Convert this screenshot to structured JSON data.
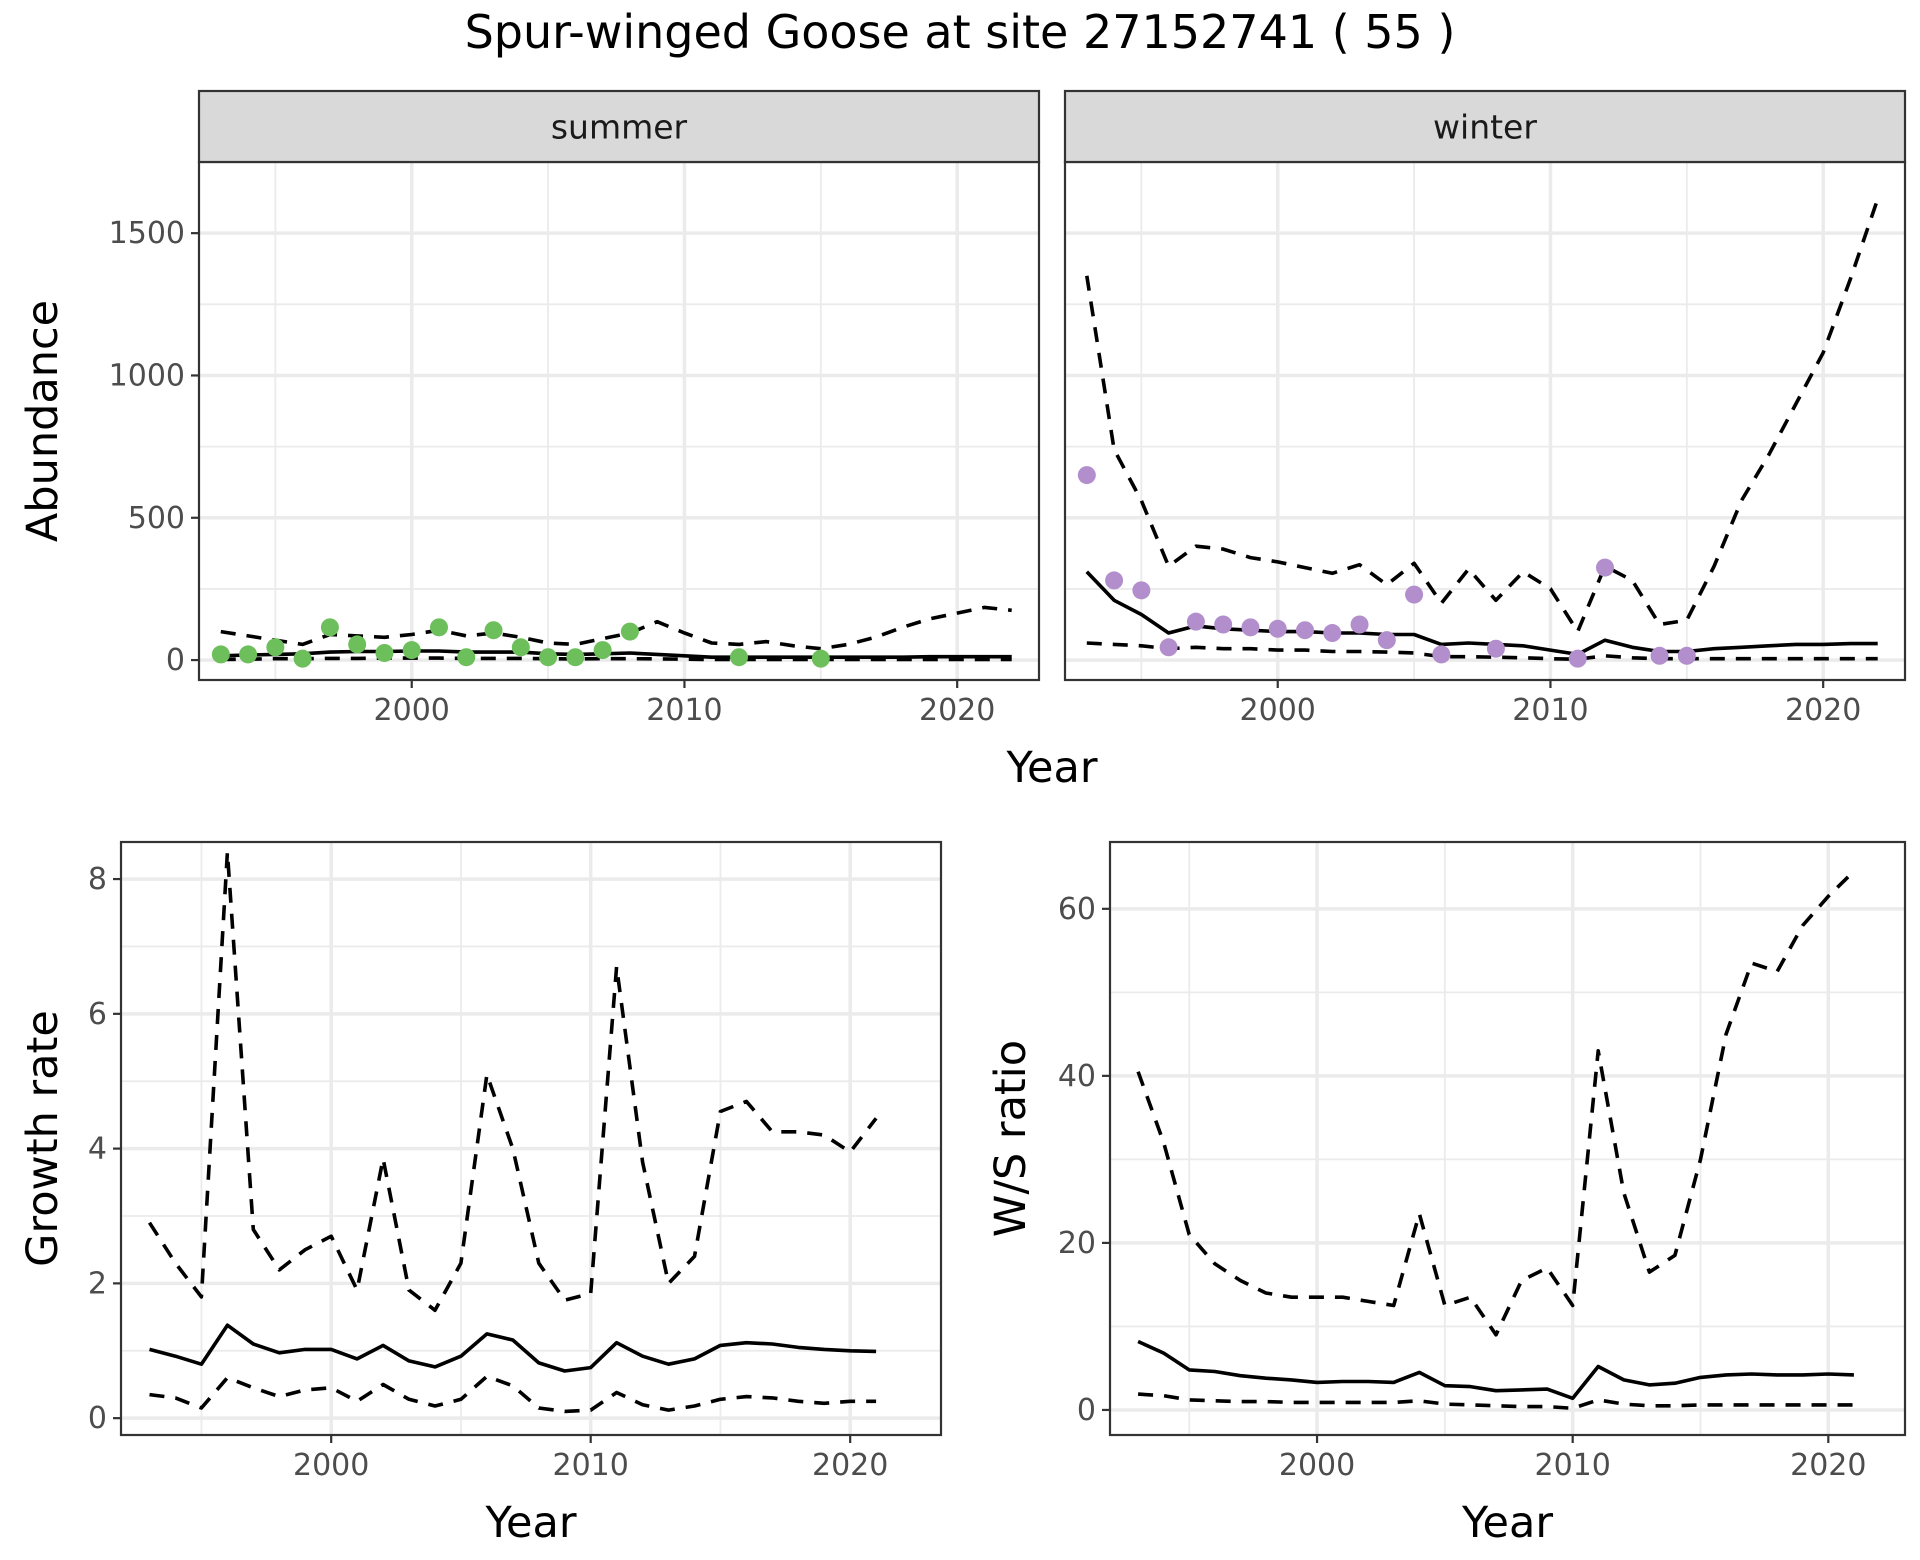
{
  "title": "Spur-winged Goose at site 27152741 ( 55 )",
  "colors": {
    "summer_points": "#6cbf5a",
    "winter_points": "#b28fcc",
    "lines": "#000000",
    "strip": "#d9d9d9"
  },
  "chart_data": [
    {
      "type": "line",
      "id": "abundance",
      "ylabel": "Abundance",
      "xlabel": "Year",
      "facets": [
        "summer",
        "winter"
      ],
      "xlim": [
        1992.2,
        2023.0
      ],
      "ylim": [
        -70,
        1750
      ],
      "xticks": [
        2000,
        2010,
        2020
      ],
      "yticks": [
        0,
        500,
        1000,
        1500
      ],
      "grid": true,
      "panels": [
        {
          "facet": "summer",
          "points": {
            "x": [
              1993,
              1994,
              1995,
              1996,
              1997,
              1998,
              1999,
              2000,
              2001,
              2002,
              2003,
              2004,
              2005,
              2006,
              2007,
              2008,
              2012,
              2015
            ],
            "y": [
              20,
              20,
              45,
              5,
              115,
              55,
              25,
              35,
              115,
              10,
              105,
              45,
              10,
              10,
              35,
              100,
              10,
              5
            ]
          },
          "lines": {
            "x": [
              1993,
              1994,
              1995,
              1996,
              1997,
              1998,
              1999,
              2000,
              2001,
              2002,
              2003,
              2004,
              2005,
              2006,
              2007,
              2008,
              2009,
              2010,
              2011,
              2012,
              2013,
              2014,
              2015,
              2016,
              2017,
              2018,
              2019,
              2020,
              2021,
              2022
            ],
            "estimate": [
              15,
              18,
              20,
              22,
              28,
              30,
              30,
              32,
              32,
              28,
              28,
              28,
              22,
              20,
              22,
              25,
              20,
              15,
              10,
              10,
              10,
              10,
              10,
              10,
              10,
              10,
              12,
              12,
              12,
              12
            ],
            "lower": [
              2,
              3,
              5,
              5,
              6,
              6,
              7,
              7,
              7,
              6,
              6,
              6,
              5,
              4,
              5,
              5,
              4,
              3,
              2,
              2,
              2,
              2,
              2,
              2,
              2,
              2,
              2,
              2,
              2,
              2
            ],
            "upper": [
              100,
              85,
              70,
              55,
              90,
              85,
              80,
              90,
              105,
              85,
              95,
              80,
              60,
              55,
              75,
              95,
              135,
              95,
              60,
              55,
              65,
              50,
              40,
              55,
              80,
              115,
              145,
              165,
              185,
              175
            ]
          }
        },
        {
          "facet": "winter",
          "points": {
            "x": [
              1993,
              1994,
              1995,
              1996,
              1997,
              1998,
              1999,
              2000,
              2001,
              2002,
              2003,
              2004,
              2005,
              2006,
              2008,
              2011,
              2012,
              2014,
              2015
            ],
            "y": [
              650,
              280,
              245,
              45,
              135,
              125,
              115,
              110,
              105,
              95,
              125,
              70,
              230,
              20,
              40,
              5,
              325,
              15,
              15
            ]
          },
          "lines": {
            "x": [
              1993,
              1994,
              1995,
              1996,
              1997,
              1998,
              1999,
              2000,
              2001,
              2002,
              2003,
              2004,
              2005,
              2006,
              2007,
              2008,
              2009,
              2010,
              2011,
              2012,
              2013,
              2014,
              2015,
              2016,
              2017,
              2018,
              2019,
              2020,
              2021,
              2022
            ],
            "estimate": [
              310,
              210,
              160,
              95,
              120,
              110,
              105,
              100,
              100,
              95,
              95,
              90,
              90,
              55,
              60,
              55,
              50,
              35,
              20,
              70,
              45,
              30,
              30,
              40,
              45,
              50,
              55,
              55,
              58,
              58
            ],
            "lower": [
              60,
              55,
              50,
              40,
              45,
              40,
              40,
              35,
              35,
              30,
              30,
              28,
              25,
              12,
              12,
              10,
              8,
              5,
              3,
              15,
              8,
              5,
              5,
              5,
              5,
              5,
              5,
              5,
              5,
              5
            ],
            "upper": [
              1350,
              740,
              560,
              330,
              400,
              390,
              360,
              345,
              325,
              305,
              335,
              265,
              340,
              200,
              320,
              210,
              310,
              250,
              100,
              330,
              280,
              125,
              140,
              330,
              560,
              720,
              900,
              1080,
              1340,
              1620
            ]
          }
        }
      ]
    },
    {
      "type": "line",
      "id": "growth",
      "ylabel": "Growth rate",
      "xlabel": "Year",
      "xlim": [
        1991.9,
        2023.5
      ],
      "ylim": [
        -0.25,
        8.55
      ],
      "xticks": [
        2000,
        2010,
        2020
      ],
      "yticks": [
        0,
        2,
        4,
        6,
        8
      ],
      "grid": true,
      "lines": {
        "x": [
          1993,
          1994,
          1995,
          1996,
          1997,
          1998,
          1999,
          2000,
          2001,
          2002,
          2003,
          2004,
          2005,
          2006,
          2007,
          2008,
          2009,
          2010,
          2011,
          2012,
          2013,
          2014,
          2015,
          2016,
          2017,
          2018,
          2019,
          2020,
          2021
        ],
        "estimate": [
          1.02,
          0.92,
          0.8,
          1.38,
          1.1,
          0.97,
          1.02,
          1.02,
          0.88,
          1.08,
          0.85,
          0.76,
          0.92,
          1.25,
          1.16,
          0.82,
          0.7,
          0.75,
          1.12,
          0.92,
          0.8,
          0.88,
          1.08,
          1.12,
          1.1,
          1.05,
          1.02,
          1.0,
          0.99
        ],
        "lower": [
          0.35,
          0.3,
          0.15,
          0.6,
          0.45,
          0.32,
          0.42,
          0.45,
          0.25,
          0.5,
          0.28,
          0.18,
          0.28,
          0.62,
          0.48,
          0.15,
          0.1,
          0.12,
          0.38,
          0.2,
          0.12,
          0.18,
          0.28,
          0.32,
          0.3,
          0.25,
          0.22,
          0.25,
          0.25
        ],
        "upper": [
          2.9,
          2.3,
          1.8,
          8.4,
          2.8,
          2.2,
          2.5,
          2.7,
          1.9,
          3.85,
          1.9,
          1.6,
          2.3,
          5.1,
          4.0,
          2.3,
          1.75,
          1.85,
          6.7,
          3.8,
          2.0,
          2.4,
          4.55,
          4.7,
          4.25,
          4.25,
          4.2,
          3.95,
          4.45
        ]
      }
    },
    {
      "type": "line",
      "id": "ratio",
      "ylabel": "W/S ratio",
      "xlabel": "Year",
      "xlim": [
        1991.9,
        2023.0
      ],
      "ylim": [
        -3,
        68
      ],
      "xticks": [
        2000,
        2010,
        2020
      ],
      "yticks": [
        0,
        20,
        40,
        60
      ],
      "grid": true,
      "lines": {
        "x": [
          1993,
          1994,
          1995,
          1996,
          1997,
          1998,
          1999,
          2000,
          2001,
          2002,
          2003,
          2004,
          2005,
          2006,
          2007,
          2008,
          2009,
          2010,
          2011,
          2012,
          2013,
          2014,
          2015,
          2016,
          2017,
          2018,
          2019,
          2020,
          2021
        ],
        "estimate": [
          8.2,
          6.8,
          4.8,
          4.6,
          4.1,
          3.8,
          3.6,
          3.3,
          3.4,
          3.4,
          3.3,
          4.5,
          2.9,
          2.8,
          2.3,
          2.4,
          2.5,
          1.4,
          5.2,
          3.6,
          3.0,
          3.2,
          3.9,
          4.2,
          4.3,
          4.2,
          4.2,
          4.3,
          4.2
        ],
        "lower": [
          1.9,
          1.7,
          1.2,
          1.1,
          1.0,
          1.0,
          0.9,
          0.9,
          0.9,
          0.9,
          0.9,
          1.1,
          0.7,
          0.6,
          0.5,
          0.4,
          0.4,
          0.2,
          1.2,
          0.7,
          0.5,
          0.5,
          0.6,
          0.6,
          0.6,
          0.6,
          0.6,
          0.6,
          0.6
        ],
        "upper": [
          40.5,
          32.0,
          21.0,
          17.5,
          15.5,
          14.0,
          13.5,
          13.5,
          13.5,
          13.0,
          12.5,
          23.5,
          12.5,
          13.5,
          9.0,
          15.5,
          17.0,
          12.5,
          43.0,
          26.0,
          16.5,
          18.5,
          30.0,
          45.0,
          53.5,
          52.5,
          58.0,
          61.5,
          64.5
        ]
      }
    }
  ]
}
